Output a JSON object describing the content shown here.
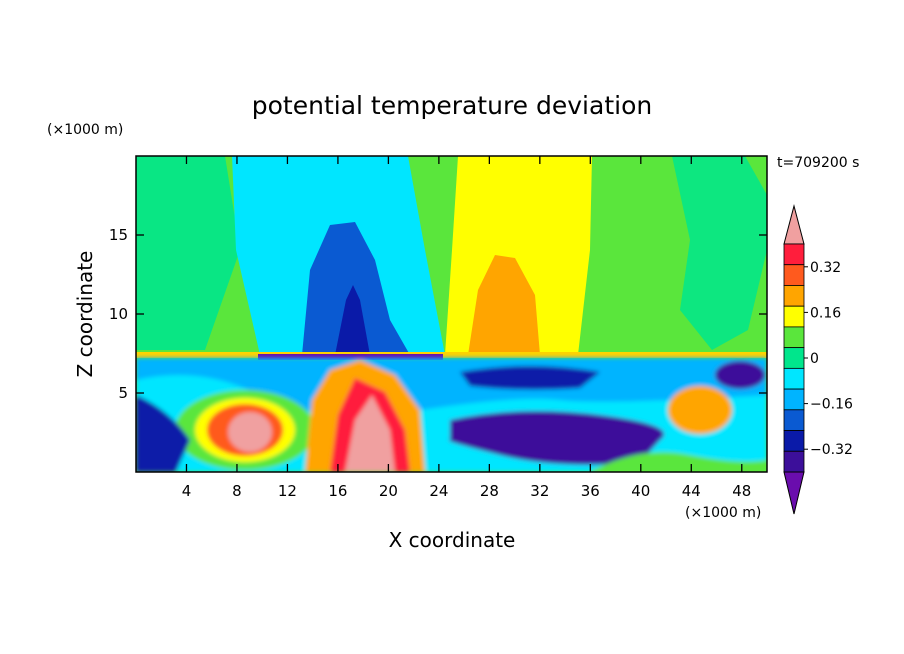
{
  "chart_data": {
    "type": "heatmap",
    "title": "potential temperature deviation",
    "xlabel": "X coordinate",
    "ylabel": "Z coordinate",
    "x_unit": "(×1000 m)",
    "y_unit": "(×1000 m)",
    "time_label": "t=709200 s",
    "xlim": [
      0,
      50
    ],
    "ylim": [
      0,
      20
    ],
    "x_ticks": [
      4,
      8,
      12,
      16,
      20,
      24,
      28,
      32,
      36,
      40,
      44,
      48
    ],
    "y_ticks": [
      5,
      10,
      15
    ],
    "colorbar": {
      "levels": [
        -0.4,
        -0.32,
        -0.24,
        -0.16,
        -0.08,
        0,
        0.08,
        0.16,
        0.24,
        0.32,
        0.4
      ],
      "labeled_ticks": [
        "0.32",
        "0.16",
        "0",
        "−0.16",
        "−0.32"
      ],
      "labeled_values": [
        0.32,
        0.16,
        0,
        -0.16,
        -0.32
      ],
      "colors": [
        "#6a0dad",
        "#3c0f9a",
        "#0a1aa8",
        "#0a5ad2",
        "#00b4ff",
        "#00e6ff",
        "#00e68c",
        "#5ae63c",
        "#ffff00",
        "#ffa500",
        "#ff5a1e",
        "#ff1e3c",
        "#f0a0a0"
      ],
      "extend": "both"
    },
    "field_description_cells": {
      "note_regions": [
        {
          "x": [
            10,
            22
          ],
          "z": [
            7.5,
            16
          ],
          "value": -0.28
        },
        {
          "x": [
            25,
            35
          ],
          "z": [
            7.5,
            19.5
          ],
          "value": 0.16
        },
        {
          "x": [
            27,
            32
          ],
          "z": [
            8,
            14
          ],
          "value": 0.24
        }
      ]
    }
  }
}
